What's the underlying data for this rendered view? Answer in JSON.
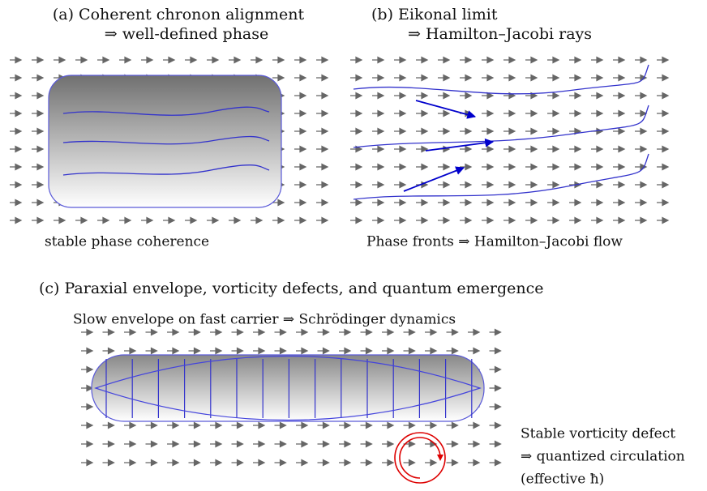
{
  "panel_a": {
    "title_line1": "(a) Coherent chronon alignment",
    "title_line2": "⇒ well-defined phase",
    "caption": "stable phase coherence"
  },
  "panel_b": {
    "title_line1": "(b) Eikonal limit",
    "title_line2": "⇒ Hamilton–Jacobi rays",
    "caption": "Phase fronts ⇒ Hamilton–Jacobi flow"
  },
  "panel_c": {
    "title": "(c) Paraxial envelope, vorticity defects, and quantum emergence",
    "subtitle": "Slow envelope on fast carrier ⇒ Schrödinger dynamics",
    "defect_line1": "Stable vorticity defect",
    "defect_line2": "⇒ quantized circulation",
    "defect_line3": "(effective ħ)"
  }
}
